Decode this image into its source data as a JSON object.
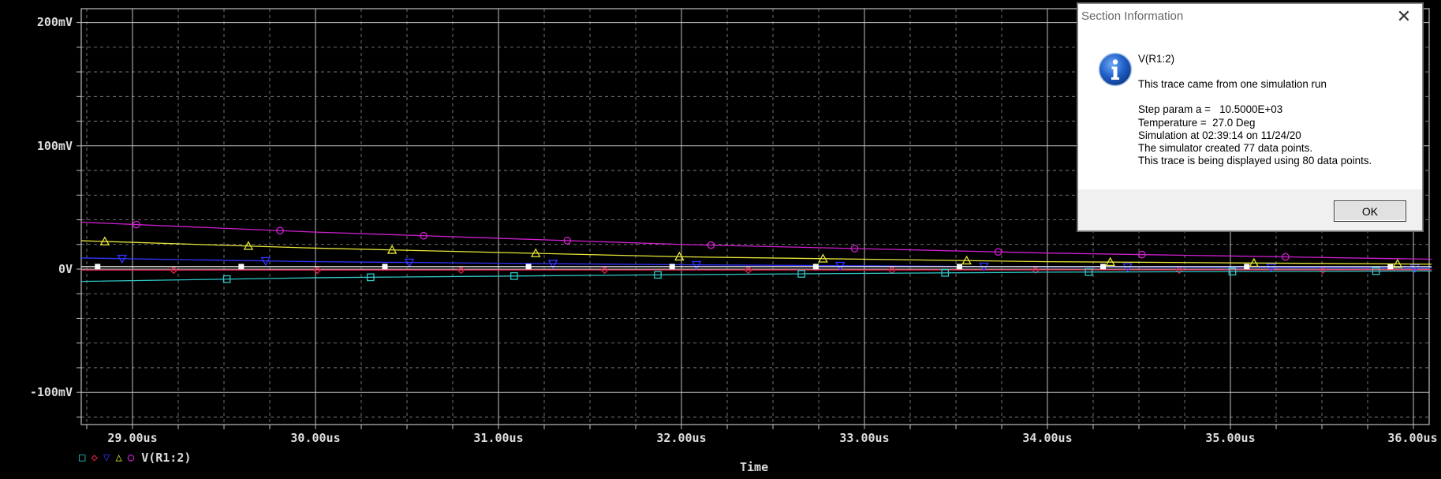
{
  "plot": {
    "background": "#000000",
    "grid_color": "#bfbfbf",
    "y_ticks": [
      "200mV",
      "100mV",
      "0V",
      "-100mV"
    ],
    "x_ticks": [
      "29.00us",
      "30.00us",
      "31.00us",
      "32.00us",
      "33.00us",
      "34.00us",
      "35.00us",
      "36.00us"
    ],
    "x_axis_title": "Time",
    "legend_label": "V(R1:2)"
  },
  "chart_data": {
    "type": "line",
    "xlabel": "Time",
    "ylabel": "",
    "x_unit": "us",
    "y_unit": "mV",
    "xlim": [
      28.72,
      36.1
    ],
    "ylim": [
      -125,
      210
    ],
    "grid": true,
    "x_ticks": [
      29,
      30,
      31,
      32,
      33,
      34,
      35,
      36
    ],
    "y_ticks": [
      200,
      100,
      0,
      -100
    ],
    "series": [
      {
        "marker": "diamond",
        "color": "#e0204a",
        "x": [
          28.72,
          36.1
        ],
        "y": [
          -0.8,
          -0.6
        ]
      },
      {
        "marker": "triangle-down",
        "color": "#3434ff",
        "x": [
          28.72,
          30.0,
          32.0,
          34.0,
          36.1
        ],
        "y": [
          9,
          6,
          3.5,
          1.8,
          0.9
        ]
      },
      {
        "marker": "square-filled",
        "color": "#ffffff",
        "x": [
          28.72,
          36.1
        ],
        "y": [
          2,
          2
        ]
      },
      {
        "marker": "triangle",
        "color": "#e8e83a",
        "x": [
          28.72,
          30.0,
          32.0,
          34.0,
          36.1
        ],
        "y": [
          23,
          17,
          10,
          6,
          4
        ]
      },
      {
        "marker": "circle",
        "color": "#d020d0",
        "x": [
          28.72,
          30.0,
          32.0,
          34.0,
          36.1
        ],
        "y": [
          38,
          30,
          20,
          13,
          8
        ]
      },
      {
        "marker": "square",
        "color": "#30c8c8",
        "x": [
          28.72,
          30.0,
          32.0,
          34.0,
          36.1
        ],
        "y": [
          -10,
          -7,
          -4.5,
          -2.5,
          -1.5
        ]
      }
    ]
  },
  "dialog": {
    "title": "Section Information",
    "trace_name": "V(R1:2)",
    "line_source": "This trace came from one simulation run",
    "line_step": "Step param a =   10.5000E+03",
    "line_temp": "Temperature =  27.0 Deg",
    "line_sim": "Simulation at 02:39:14 on 11/24/20",
    "line_created": "The simulator created 77 data points.",
    "line_displayed": "This trace is being displayed using 80 data points.",
    "ok_label": "OK",
    "close_glyph": "✕",
    "icon": "info-icon"
  }
}
